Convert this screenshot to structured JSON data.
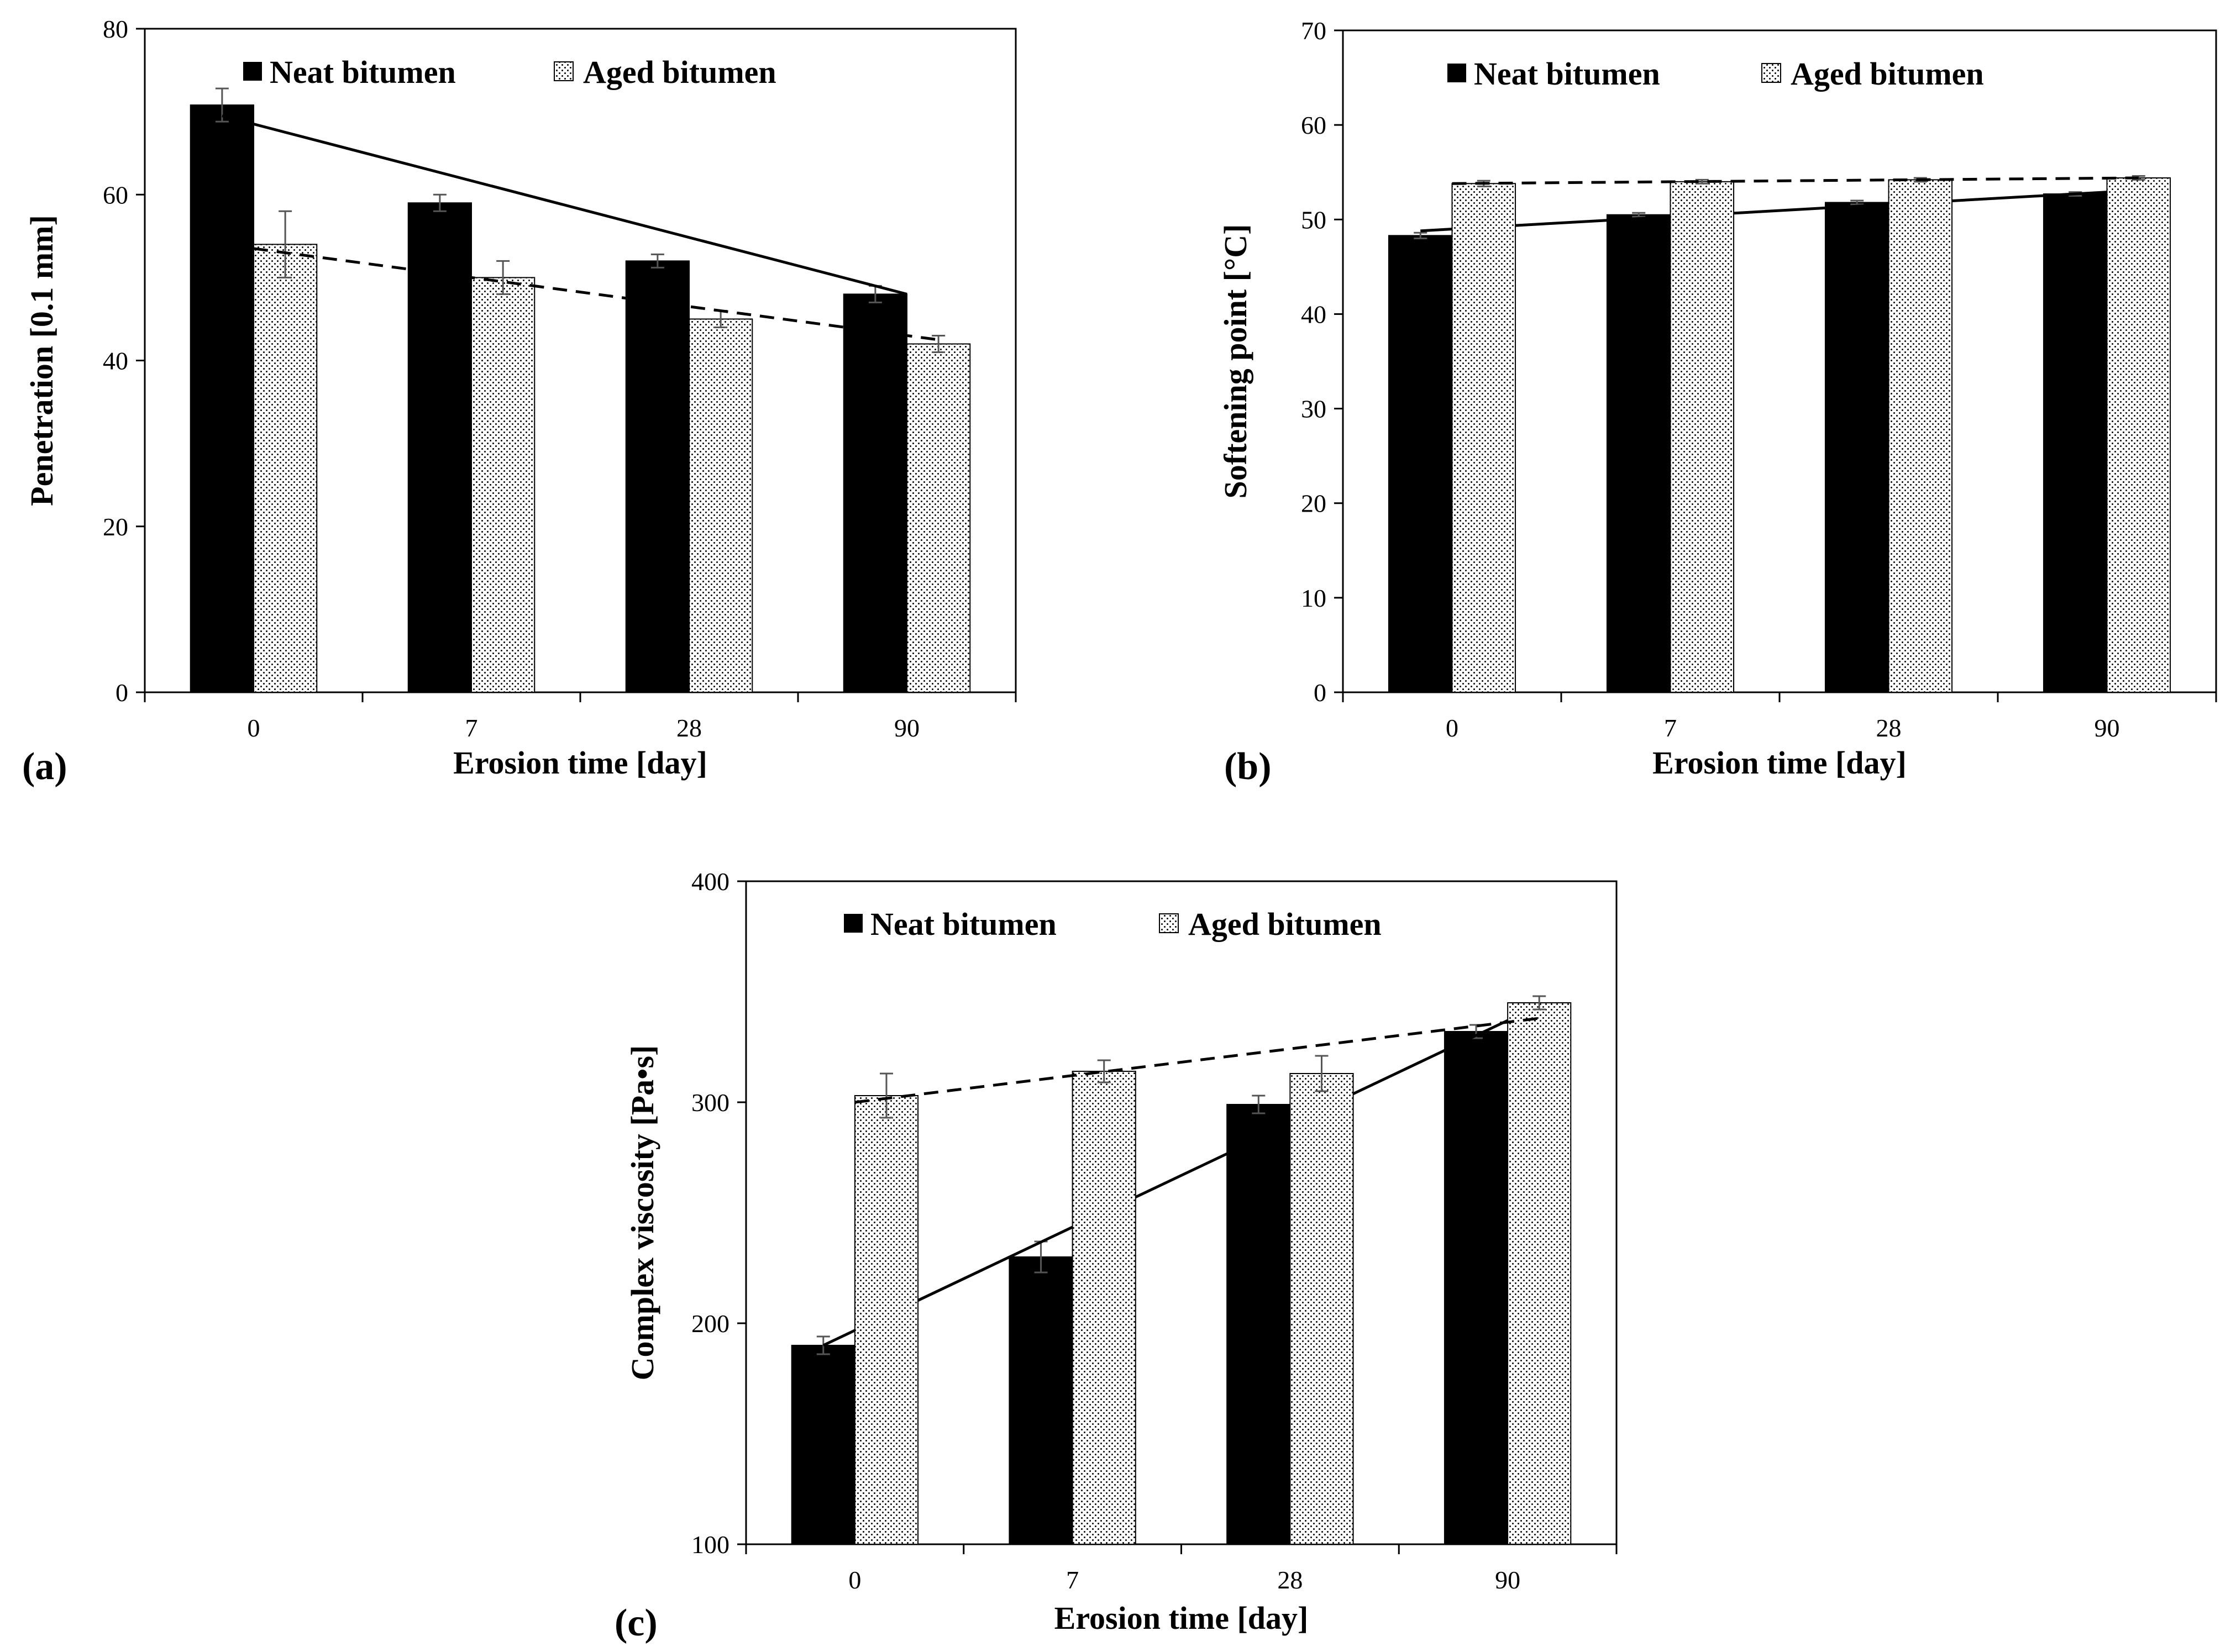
{
  "chart_data": [
    {
      "type": "bar",
      "panel_label": "(a)",
      "title": "",
      "xlabel": "Erosion time [day]",
      "ylabel": "Penetration [0.1 mm]",
      "categories": [
        "0",
        "7",
        "28",
        "90"
      ],
      "ylim": [
        0,
        80
      ],
      "yticks": [
        0,
        20,
        40,
        60,
        80
      ],
      "ytick_labels": [
        "0",
        "20",
        "40",
        "60",
        "80"
      ],
      "legend_position": "top",
      "series": [
        {
          "name": "Neat bitumen",
          "fill": "solid",
          "values": [
            70.8,
            59,
            52,
            48
          ],
          "errors": [
            2,
            1,
            0.8,
            1
          ],
          "trendline": {
            "style": "solid",
            "start": 69.5,
            "end": 48
          }
        },
        {
          "name": "Aged bitumen",
          "fill": "dotted",
          "values": [
            54,
            50,
            45,
            42
          ],
          "errors": [
            4,
            2,
            1,
            1
          ],
          "trendline": {
            "style": "dashed",
            "start": 53.5,
            "end": 42.5
          }
        }
      ]
    },
    {
      "type": "bar",
      "panel_label": "(b)",
      "title": "",
      "xlabel": "Erosion time [day]",
      "ylabel": "Softening point [°C]",
      "categories": [
        "0",
        "7",
        "28",
        "90"
      ],
      "ylim": [
        0,
        70
      ],
      "yticks": [
        0,
        10,
        20,
        30,
        40,
        50,
        60,
        70
      ],
      "ytick_labels": [
        "0",
        "10",
        "20",
        "30",
        "40",
        "50",
        "60",
        "70"
      ],
      "legend_position": "top",
      "series": [
        {
          "name": "Neat bitumen",
          "fill": "solid",
          "values": [
            48.3,
            50.5,
            51.8,
            52.7
          ],
          "errors": [
            0.3,
            0.2,
            0.2,
            0.2
          ],
          "trendline": {
            "style": "solid",
            "start": 48.8,
            "end": 52.9
          }
        },
        {
          "name": "Aged bitumen",
          "fill": "dotted",
          "values": [
            53.8,
            54,
            54.2,
            54.4
          ],
          "errors": [
            0.3,
            0.2,
            0.2,
            0.2
          ],
          "trendline": {
            "style": "dashed",
            "start": 53.8,
            "end": 54.4
          }
        }
      ]
    },
    {
      "type": "bar",
      "panel_label": "(c)",
      "title": "",
      "xlabel": "Erosion time [day]",
      "ylabel": "Complex viscosity [Pa•s]",
      "categories": [
        "0",
        "7",
        "28",
        "90"
      ],
      "ylim": [
        100,
        400
      ],
      "yticks": [
        100,
        200,
        300,
        400
      ],
      "ytick_labels": [
        "100",
        "200",
        "300",
        "400"
      ],
      "legend_position": "top",
      "series": [
        {
          "name": "Neat bitumen",
          "fill": "solid",
          "values": [
            190,
            230,
            299,
            332
          ],
          "errors": [
            4,
            7,
            4,
            3
          ],
          "trendline": {
            "style": "solid",
            "start": 190,
            "end": 337
          }
        },
        {
          "name": "Aged bitumen",
          "fill": "dotted",
          "values": [
            303,
            314,
            313,
            345
          ],
          "errors": [
            10,
            5,
            8,
            3
          ],
          "trendline": {
            "style": "dashed",
            "start": 300,
            "end": 338
          }
        }
      ]
    }
  ]
}
